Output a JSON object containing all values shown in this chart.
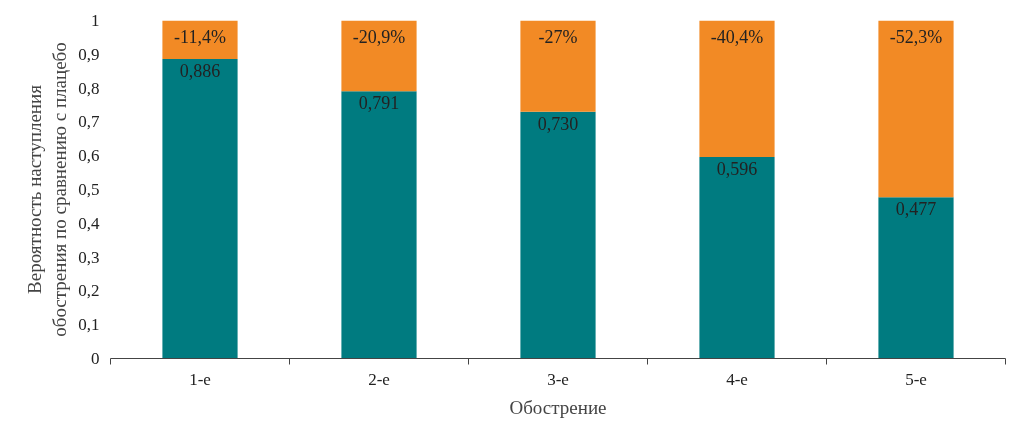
{
  "chart_data": {
    "type": "bar",
    "stacked": true,
    "xlabel": "Обострение",
    "ylabel": "Вероятность наступления обострения по сравнению с плацебо",
    "categories": [
      "1-е",
      "2-е",
      "3-е",
      "4-е",
      "5-е"
    ],
    "series": [
      {
        "color": "#007b80",
        "values": [
          0.886,
          0.791,
          0.73,
          0.596,
          0.477
        ],
        "value_labels": [
          "0,886",
          "0,791",
          "0,730",
          "0,596",
          "0,477"
        ]
      },
      {
        "color": "#f28a25",
        "values": [
          0.114,
          0.209,
          0.27,
          0.404,
          0.523
        ]
      }
    ],
    "annotations": [
      {
        "text": "-11,4%",
        "x": "1-е",
        "y": 1
      },
      {
        "text": "-20,9%",
        "x": "2-е",
        "y": 1
      },
      {
        "text": "-27%",
        "x": "3-е",
        "y": 1
      },
      {
        "text": "-40,4%",
        "x": "4-е",
        "y": 1
      },
      {
        "text": "-52,3%",
        "x": "5-е",
        "y": 1
      }
    ],
    "ylim": [
      0,
      1
    ],
    "yticks": [
      0,
      {
        "value": 0.1,
        "label": "0,1"
      },
      {
        "value": 0.2,
        "label": "0,2"
      },
      {
        "value": 0.3,
        "label": "0,3"
      },
      {
        "value": 0.4,
        "label": "0,4"
      },
      {
        "value": 0.5,
        "label": "0,5"
      },
      {
        "value": 0.6,
        "label": "0,6"
      },
      {
        "value": 0.7,
        "label": "0,7"
      },
      {
        "value": 0.8,
        "label": "0,8"
      },
      {
        "value": 0.9,
        "label": "0,9"
      },
      1
    ],
    "grid": false
  }
}
